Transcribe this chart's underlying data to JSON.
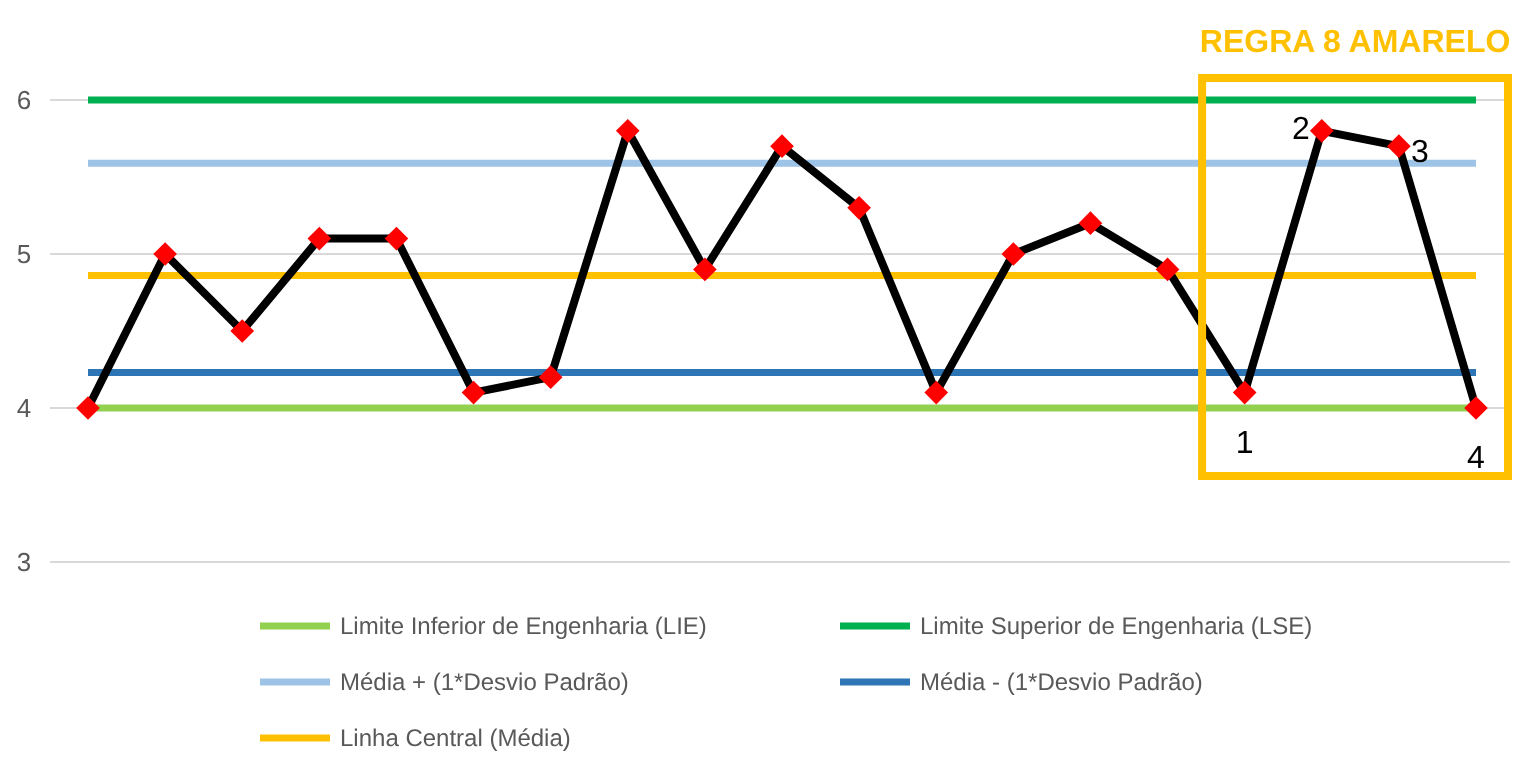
{
  "chart_data": {
    "type": "line",
    "categories": [
      null,
      null,
      null,
      null,
      null,
      null,
      null,
      null,
      null,
      null,
      null,
      null,
      null,
      null,
      null,
      null,
      null,
      null,
      null
    ],
    "ylim": [
      3,
      6
    ],
    "yticks": [
      3,
      4,
      5,
      6
    ],
    "grid": "y",
    "legend": "bottom",
    "line_style": "solid",
    "marker": "diamond",
    "series": [
      {
        "color": "#000000",
        "marker": "none",
        "values": [
          4.0,
          5.0,
          4.5,
          5.1,
          5.1,
          4.1,
          4.2,
          5.8,
          4.9,
          5.7,
          5.3,
          4.1,
          5.0,
          5.2,
          4.9,
          4.1,
          5.8,
          5.7,
          4.0
        ]
      },
      {
        "type": "scatter",
        "color": "#ff0000",
        "values": [
          4.0,
          5.0,
          4.5,
          5.1,
          5.1,
          4.1,
          4.2,
          5.8,
          4.9,
          5.7,
          5.3,
          4.1,
          5.0,
          5.2,
          4.9,
          4.1,
          5.8,
          5.7,
          4.0
        ]
      },
      {
        "name": "Limite Inferior de Engenharia (LIE)",
        "color": "#92d050",
        "marker": "none",
        "values": [
          4,
          4,
          4,
          4,
          4,
          4,
          4,
          4,
          4,
          4,
          4,
          4,
          4,
          4,
          4,
          4,
          4,
          4,
          4
        ]
      },
      {
        "name": "Limite Superior de Engenharia (LSE)",
        "color": "#00b050",
        "marker": "none",
        "values": [
          6,
          6,
          6,
          6,
          6,
          6,
          6,
          6,
          6,
          6,
          6,
          6,
          6,
          6,
          6,
          6,
          6,
          6,
          6
        ]
      },
      {
        "name": "Média + (1*Desvio Padrão)",
        "color": "#9dc3e6",
        "marker": "none",
        "values": [
          5.59,
          5.59,
          5.59,
          5.59,
          5.59,
          5.59,
          5.59,
          5.59,
          5.59,
          5.59,
          5.59,
          5.59,
          5.59,
          5.59,
          5.59,
          5.59,
          5.59,
          5.59,
          5.59
        ]
      },
      {
        "name": "Média - (1*Desvio Padrão)",
        "color": "#2e75b6",
        "marker": "none",
        "values": [
          4.23,
          4.23,
          4.23,
          4.23,
          4.23,
          4.23,
          4.23,
          4.23,
          4.23,
          4.23,
          4.23,
          4.23,
          4.23,
          4.23,
          4.23,
          4.23,
          4.23,
          4.23,
          4.23
        ]
      },
      {
        "name": "Linha Central (Média)",
        "color": "#ffc000",
        "marker": "none",
        "values": [
          4.86,
          4.86,
          4.86,
          4.86,
          4.86,
          4.86,
          4.86,
          4.86,
          4.86,
          4.86,
          4.86,
          4.86,
          4.86,
          4.86,
          4.86,
          4.86,
          4.86,
          4.86,
          4.86
        ]
      }
    ],
    "annotations": [
      "REGRA 8 AMARELO",
      "1",
      "2",
      "3",
      "4"
    ]
  }
}
